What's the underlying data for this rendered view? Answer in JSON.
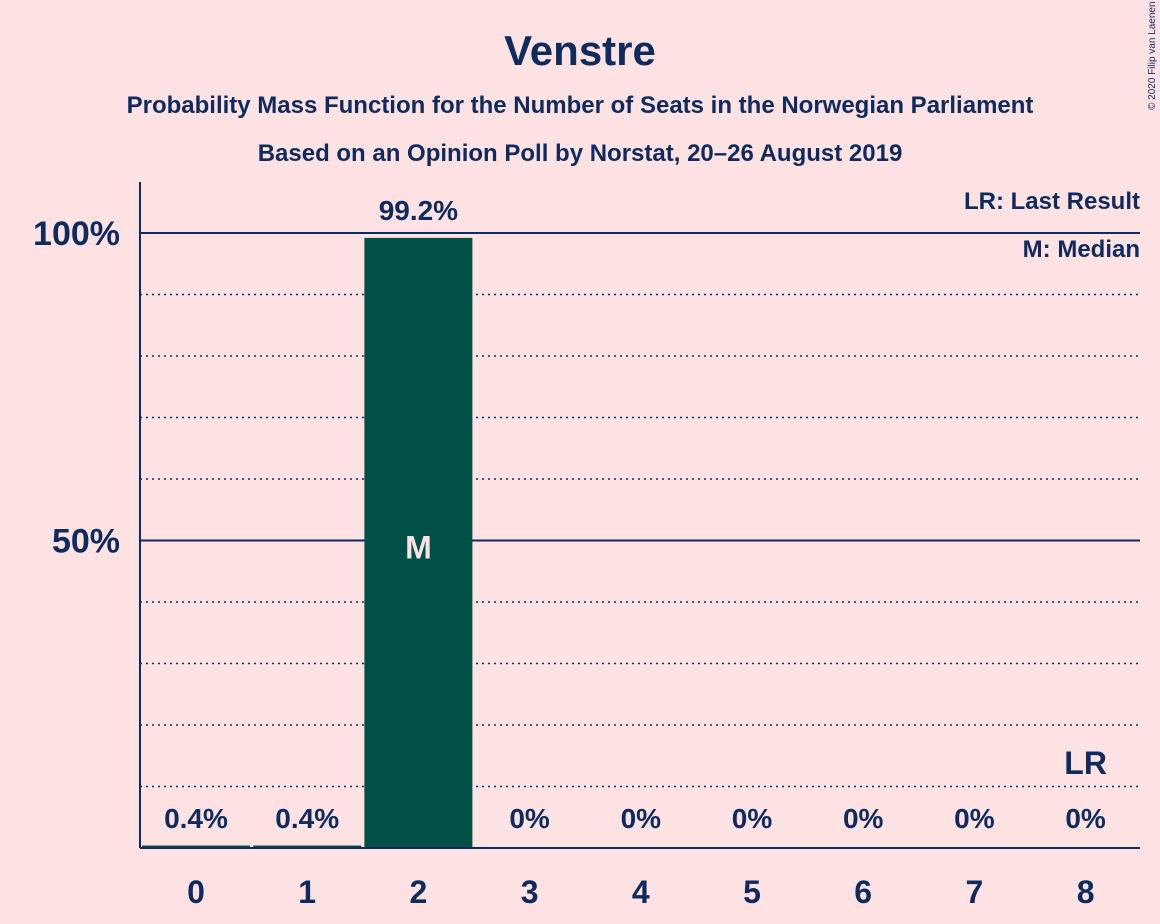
{
  "chart_data": {
    "type": "bar",
    "title": "Venstre",
    "subtitle": "Probability Mass Function for the Number of Seats in the Norwegian Parliament",
    "subtitle2": "Based on an Opinion Poll by Norstat, 20–26 August 2019",
    "copyright": "© 2020 Filip van Laenen",
    "categories": [
      "0",
      "1",
      "2",
      "3",
      "4",
      "5",
      "6",
      "7",
      "8"
    ],
    "values": [
      0.4,
      0.4,
      99.2,
      0,
      0,
      0,
      0,
      0,
      0
    ],
    "value_labels": [
      "0.4%",
      "0.4%",
      "99.2%",
      "0%",
      "0%",
      "0%",
      "0%",
      "0%",
      "0%"
    ],
    "ylim": [
      0,
      108
    ],
    "yticks": [
      {
        "value": 50,
        "label": "50%"
      },
      {
        "value": 100,
        "label": "100%"
      }
    ],
    "minor_gridlines": [
      10,
      20,
      30,
      40,
      60,
      70,
      80,
      90
    ],
    "median_index": 2,
    "median_marker": "M",
    "last_result_index": 8,
    "last_result_marker": "LR",
    "legend": [
      "LR: Last Result",
      "M: Median"
    ],
    "legend_position": "top-right",
    "colors": {
      "bar": "#005045",
      "background": "#fde2e4",
      "text": "#0f2a5c"
    }
  }
}
